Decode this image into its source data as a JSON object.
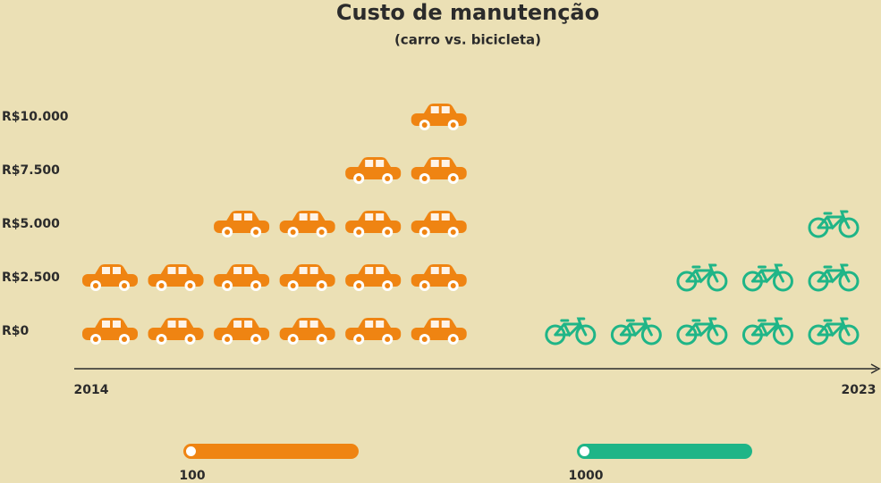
{
  "chart_data": {
    "type": "pictogram",
    "title": "Custo de manutenção",
    "subtitle": "(carro vs. bicicleta)",
    "categories": [
      "2014",
      null,
      null,
      null,
      null,
      null,
      null,
      null,
      null,
      null,
      null,
      "2023"
    ],
    "series": [
      {
        "icon": "car",
        "color": "#ef8412",
        "values": [
          5000,
          6000,
          7500,
          8500,
          11000,
          12500,
          null,
          null,
          null,
          null,
          null,
          null
        ]
      },
      {
        "icon": "bike",
        "color": "#1fb587",
        "values": [
          null,
          null,
          null,
          null,
          null,
          null,
          1250,
          2500,
          3750,
          5000,
          6250,
          7500
        ]
      }
    ],
    "ylim": [
      0,
      12500
    ],
    "yticks": [
      {
        "value": 0,
        "label": "R$0"
      },
      {
        "value": 2500,
        "label": "R$2.500"
      },
      {
        "value": 5000,
        "label": "R$5.000"
      },
      {
        "value": 7500,
        "label": "R$7.500"
      },
      {
        "value": 10000,
        "label": "R$10.000"
      }
    ],
    "slider_labels": [
      "100",
      "1000"
    ]
  }
}
